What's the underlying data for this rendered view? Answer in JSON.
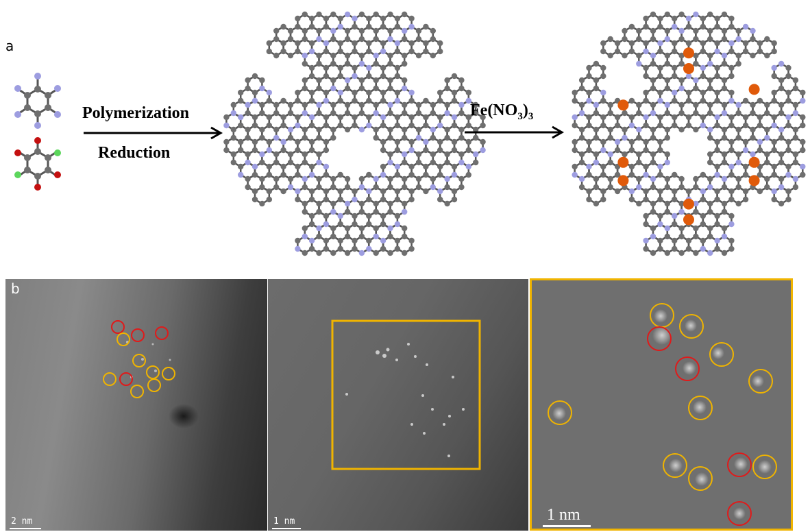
{
  "panel_a": {
    "letter": "a",
    "arrow1_labels": [
      "Polymerization",
      "Reduction"
    ],
    "arrow2_label_prefix": "Fe(NO",
    "arrow2_label_sub": "3",
    "arrow2_label_mid": ")",
    "arrow2_label_sub2": "3"
  },
  "panel_b": {
    "letter": "b",
    "scalebars": [
      "2 nm",
      "1 nm",
      "1 nm"
    ]
  },
  "colors": {
    "carbon": "#6f6f6f",
    "nitrogen": "#9d9de0",
    "oxygen": "#c41010",
    "chlorine": "#5cd65c",
    "iron": "#e05a0a",
    "highlight_yellow": "#f0b400",
    "highlight_red": "#e01a1a"
  }
}
